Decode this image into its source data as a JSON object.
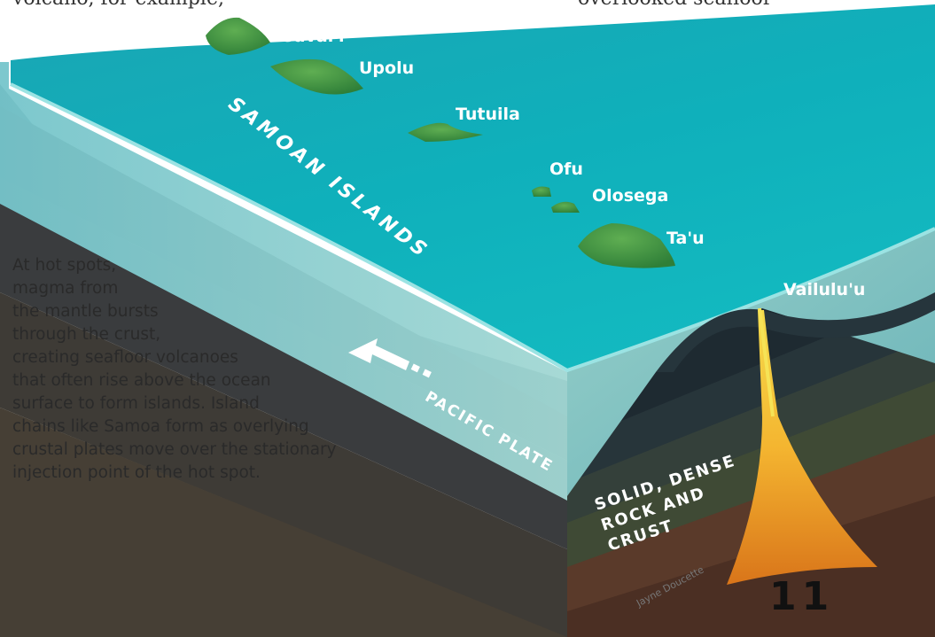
{
  "top_text": {
    "left_fragment": "volcano, for example,",
    "right_fragment": "overlooked seafloor"
  },
  "islands": [
    {
      "name": "Savai'i"
    },
    {
      "name": "Upolu"
    },
    {
      "name": "Tutuila"
    },
    {
      "name": "Ofu"
    },
    {
      "name": "Olosega"
    },
    {
      "name": "Ta'u"
    }
  ],
  "volcano_label": "Vailulu'u",
  "island_chain_label": "SAMOAN ISLANDS",
  "plate_label": "PACIFIC PLATE",
  "rock_label": {
    "line1": "SOLID, DENSE",
    "line2": "ROCK AND",
    "line3": "CRUST"
  },
  "caption_lines": [
    "At hot spots,",
    "magma from",
    "the mantle bursts",
    "through the crust,",
    "creating seafloor volcanoes",
    "that often rise above the ocean",
    "surface to form islands. Island",
    "chains like Samoa form as overlying",
    "crustal plates move over the stationary",
    "injection point of the hot spot."
  ],
  "credit": "Jayne Doucette",
  "page_number": "11",
  "colors": {
    "ocean_top": "#13a9b6",
    "ocean_side": "#7ecdd0",
    "island_green": "#3f9040",
    "crust_dark": "#2e3338",
    "magma": "#f2b23a"
  }
}
